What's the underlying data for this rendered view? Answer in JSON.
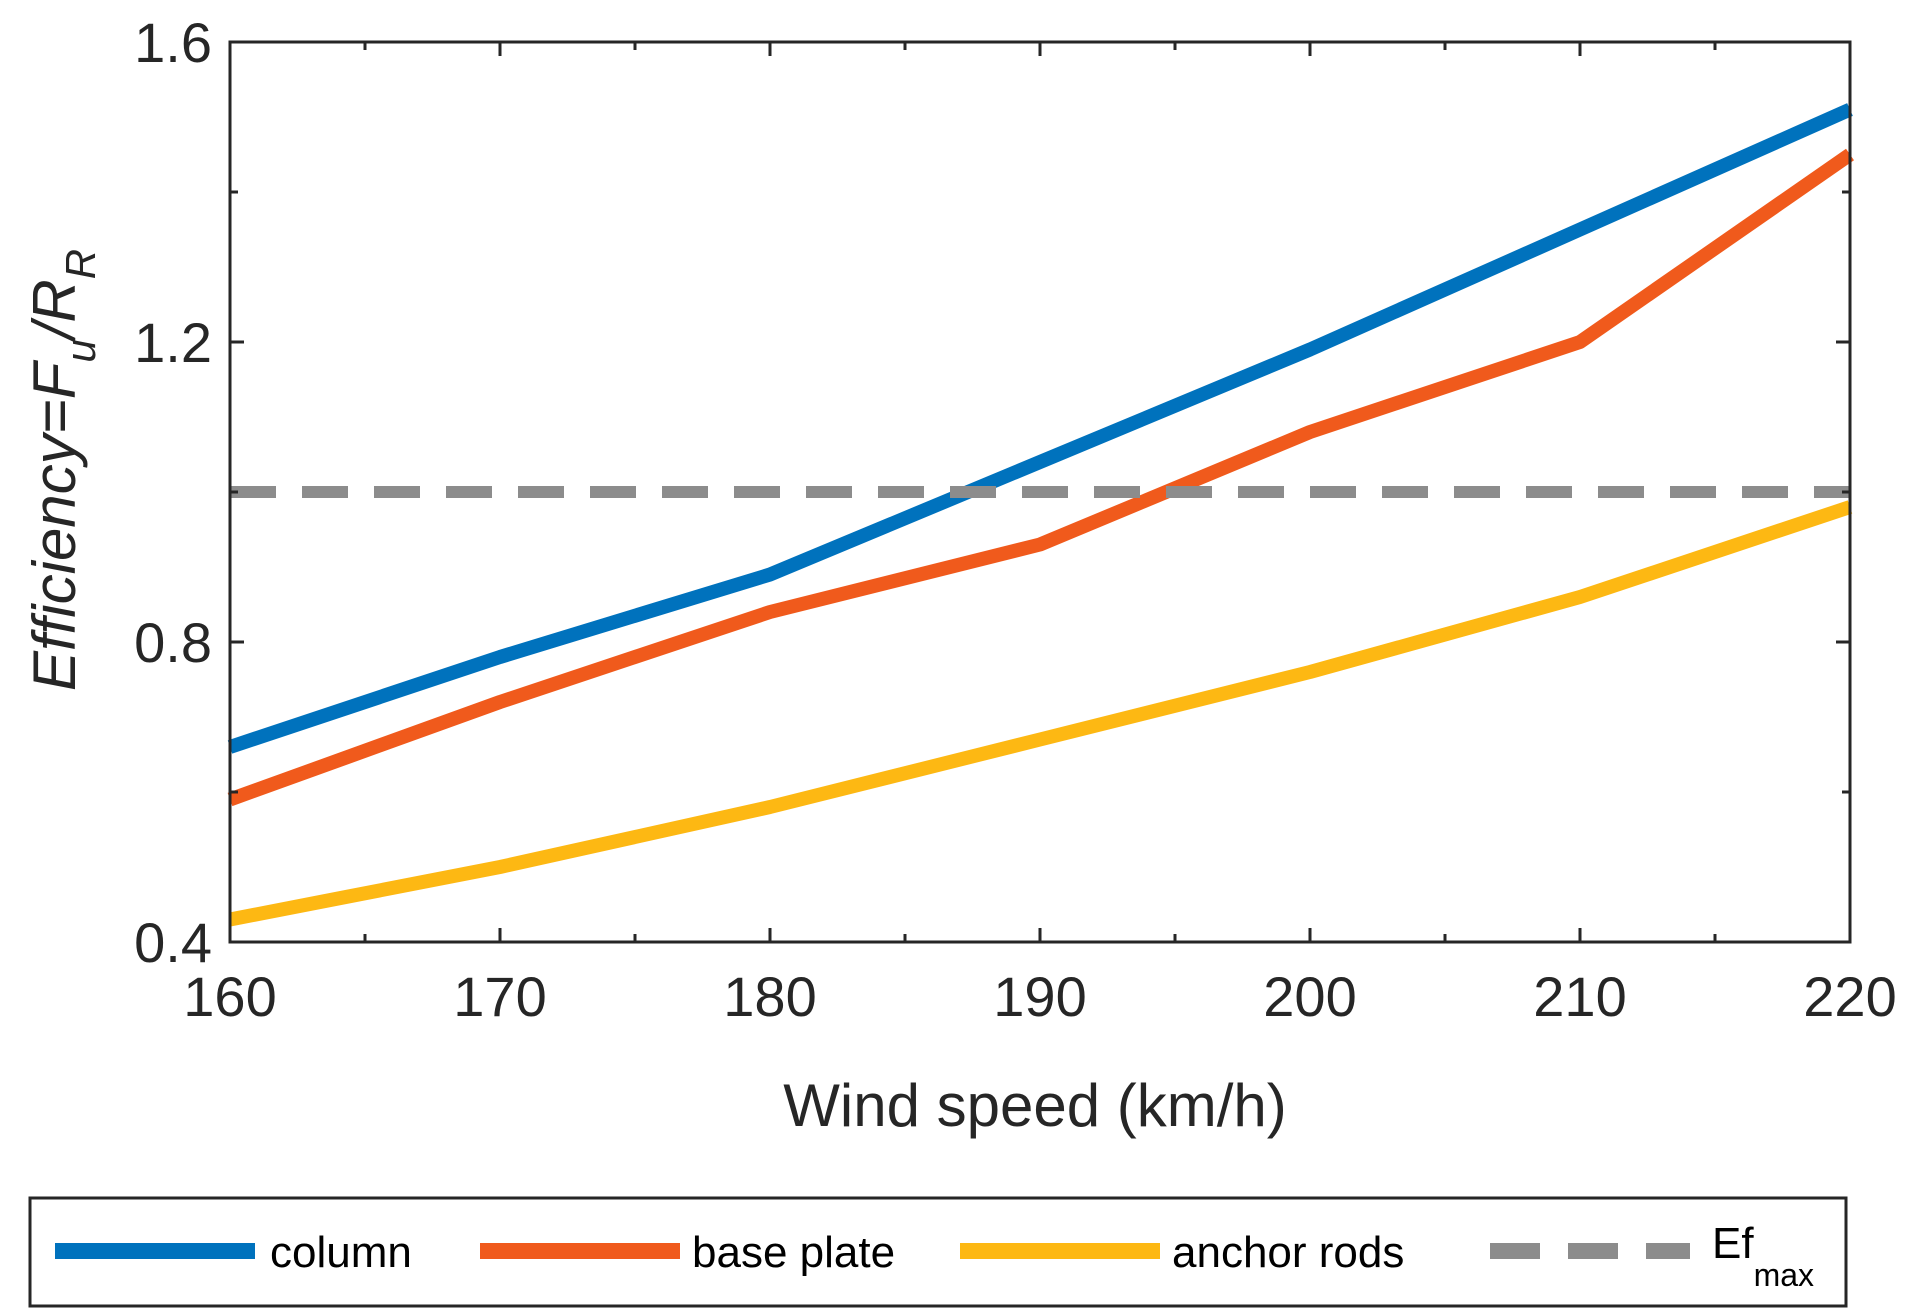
{
  "chart_data": {
    "type": "line",
    "title": "",
    "xlabel": "Wind speed (km/h)",
    "ylabel": {
      "prefix": "Efficiency=F",
      "sub1": "u",
      "mid": "/R",
      "sub2": "R"
    },
    "x": [
      160,
      170,
      180,
      190,
      200,
      210,
      220
    ],
    "xlim": [
      160,
      220
    ],
    "ylim": [
      0.4,
      1.6
    ],
    "xticks": [
      160,
      170,
      180,
      190,
      200,
      210,
      220
    ],
    "xtick_labels": [
      "160",
      "170",
      "180",
      "190",
      "200",
      "210",
      "220"
    ],
    "yticks": [
      0.4,
      0.8,
      1.2,
      1.6
    ],
    "ytick_labels": [
      "0.4",
      "0.8",
      "1.2",
      "1.6"
    ],
    "grid": false,
    "legend_position": "bottom-outside",
    "series": [
      {
        "name": "column",
        "label": "column",
        "color": "#0072BD",
        "dashed": false,
        "values": [
          0.66,
          0.78,
          0.89,
          1.04,
          1.19,
          1.35,
          1.51
        ]
      },
      {
        "name": "base_plate",
        "label": "base plate",
        "color": "#F05A1C",
        "dashed": false,
        "values": [
          0.59,
          0.72,
          0.84,
          0.93,
          1.08,
          1.2,
          1.45
        ]
      },
      {
        "name": "anchor_rods",
        "label": "anchor rods",
        "color": "#FDB813",
        "dashed": false,
        "values": [
          0.43,
          0.5,
          0.58,
          0.67,
          0.76,
          0.86,
          0.98
        ]
      },
      {
        "name": "ef_max",
        "label": "Ef",
        "label_sub": "max",
        "color": "#8C8C8C",
        "dashed": true,
        "values": [
          1.0,
          1.0,
          1.0,
          1.0,
          1.0,
          1.0,
          1.0
        ]
      }
    ]
  }
}
